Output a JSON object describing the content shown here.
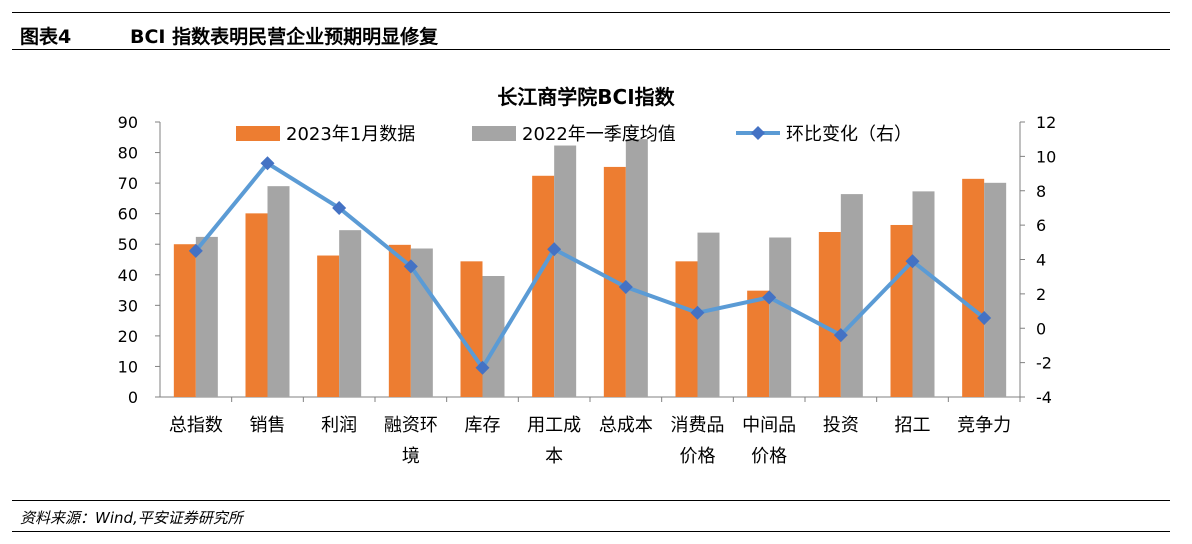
{
  "figure": {
    "number": "图表4",
    "title": "BCI 指数表明民营企业预期明显修复",
    "source": "资料来源：Wind,平安证券研究所"
  },
  "colors": {
    "orange": "#ED7D31",
    "gray": "#A5A5A5",
    "blue": "#5B9BD5",
    "marker": "#4472C4",
    "axis": "#808080"
  },
  "chart_data": {
    "type": "bar",
    "title": "长江商学院BCI指数",
    "categories": [
      "总指数",
      "销售",
      "利润",
      "融资环境",
      "库存",
      "用工成本",
      "总成本",
      "消费品价格",
      "中间品价格",
      "投资",
      "招工",
      "竞争力"
    ],
    "category_lines": [
      [
        "总指数"
      ],
      [
        "销售"
      ],
      [
        "利润"
      ],
      [
        "融资环",
        "境"
      ],
      [
        "库存"
      ],
      [
        "用工成",
        "本"
      ],
      [
        "总成本"
      ],
      [
        "消费品",
        "价格"
      ],
      [
        "中间品",
        "价格"
      ],
      [
        "投资"
      ],
      [
        "招工"
      ],
      [
        "竞争力"
      ]
    ],
    "series": [
      {
        "name": "2023年1月数据",
        "type": "bar",
        "axis": "left",
        "values": [
          50.0,
          60.1,
          46.3,
          49.8,
          44.4,
          72.4,
          75.3,
          44.4,
          34.8,
          54.0,
          56.3,
          71.4
        ]
      },
      {
        "name": "2022年一季度均值",
        "type": "bar",
        "axis": "left",
        "values": [
          52.4,
          69.0,
          54.6,
          48.6,
          39.6,
          82.3,
          84.4,
          53.8,
          52.2,
          66.4,
          67.3,
          70.1
        ]
      },
      {
        "name": "环比变化（右）",
        "type": "line",
        "axis": "right",
        "values": [
          4.5,
          9.6,
          7.0,
          3.6,
          -2.3,
          4.6,
          2.4,
          0.9,
          1.8,
          -0.4,
          3.9,
          0.6
        ]
      }
    ],
    "y_left": {
      "min": 0,
      "max": 90,
      "step": 10
    },
    "y_right": {
      "min": -4,
      "max": 12,
      "step": 2
    },
    "legend_position": "top",
    "grid": false
  }
}
